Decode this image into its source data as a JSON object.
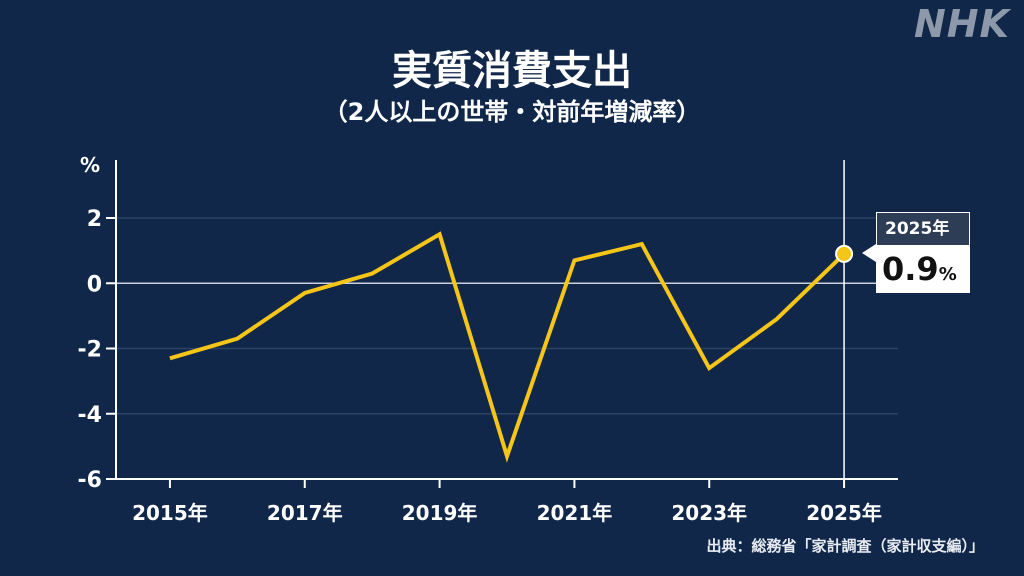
{
  "brand": "NHK",
  "title": "実質消費支出",
  "subtitle": "（2人以上の世帯・対前年増減率）",
  "source": "出典：総務省「家計調査（家計収支編）」",
  "callout": {
    "label": "2025年",
    "value": "0.9",
    "unit": "%"
  },
  "colors": {
    "background": "#102749",
    "line": "#f5c518",
    "axis": "#ffffff",
    "grid": "#2b4266"
  },
  "chart_data": {
    "type": "line",
    "title": "実質消費支出",
    "subtitle": "（2人以上の世帯・対前年増減率）",
    "ylabel": "%",
    "ylim": [
      -6,
      2
    ],
    "yticks": [
      2,
      0,
      -2,
      -4,
      -6
    ],
    "xlim": [
      2014.2,
      2025.8
    ],
    "xticks": [
      {
        "value": 2015,
        "label": "2015年"
      },
      {
        "value": 2017,
        "label": "2017年"
      },
      {
        "value": 2019,
        "label": "2019年"
      },
      {
        "value": 2021,
        "label": "2021年"
      },
      {
        "value": 2023,
        "label": "2023年"
      },
      {
        "value": 2025,
        "label": "2025年"
      }
    ],
    "grid": true,
    "series": [
      {
        "x": [
          2015,
          2016,
          2017,
          2018,
          2019,
          2020,
          2021,
          2022,
          2023,
          2024,
          2025
        ],
        "values": [
          -2.3,
          -1.7,
          -0.3,
          0.3,
          1.5,
          -5.3,
          0.7,
          1.2,
          -2.6,
          -1.1,
          0.9
        ]
      }
    ],
    "highlight": {
      "x": 2025,
      "value": 0.9,
      "label": "2025年"
    }
  }
}
